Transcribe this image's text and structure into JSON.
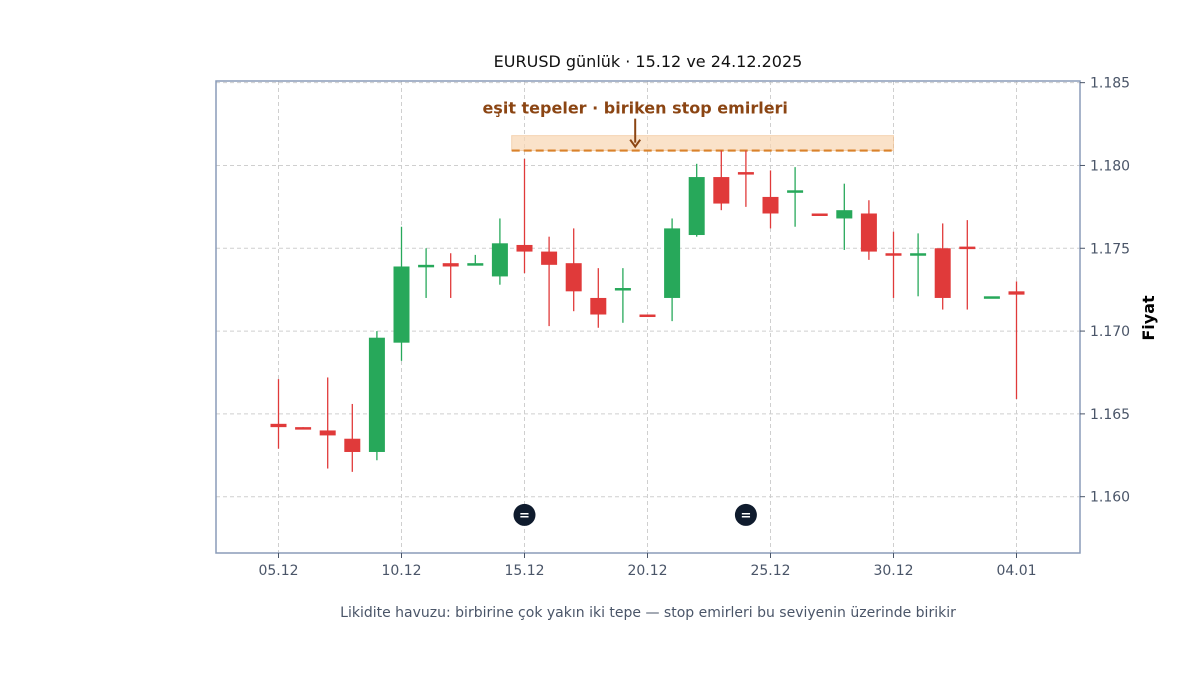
{
  "chart_data": {
    "type": "candlestick",
    "title": "EURUSD günlük · 15.12 ve 24.12.2025",
    "ylabel": "Fiyat",
    "xlabel": "",
    "caption": "Likidite havuzu: birbirine çok yakın iki tepe — stop emirleri bu seviyenin üzerinde birikir",
    "ylim": [
      1.1566,
      1.1851
    ],
    "y_ticks": [
      "1.160",
      "1.165",
      "1.170",
      "1.175",
      "1.180",
      "1.185"
    ],
    "y_tick_values": [
      1.16,
      1.165,
      1.17,
      1.175,
      1.18,
      1.185
    ],
    "x_ticks": [
      "05.12",
      "10.12",
      "15.12",
      "20.12",
      "25.12",
      "30.12",
      "04.01"
    ],
    "x_tick_index": [
      0,
      5,
      10,
      15,
      20,
      25,
      30
    ],
    "grid": true,
    "colors": {
      "up": "#27a85a",
      "down": "#e03a3a",
      "zone_fill": "#f9d7b3",
      "zone_line": "#d9822b",
      "annotation": "#8b4513",
      "marker": "#0f1b2d",
      "frame": "#8a9bb8",
      "grid": "#cfcfcf"
    },
    "candles": [
      {
        "date": "05.12",
        "open": 1.1644,
        "high": 1.1671,
        "low": 1.1629,
        "close": 1.1642
      },
      {
        "date": "06.12",
        "open": 1.1642,
        "high": 1.1642,
        "low": 1.1641,
        "close": 1.1641
      },
      {
        "date": "07.12",
        "open": 1.164,
        "high": 1.1672,
        "low": 1.1617,
        "close": 1.1637
      },
      {
        "date": "08.12",
        "open": 1.1635,
        "high": 1.1656,
        "low": 1.1615,
        "close": 1.1627
      },
      {
        "date": "09.12",
        "open": 1.1627,
        "high": 1.17,
        "low": 1.1622,
        "close": 1.1696
      },
      {
        "date": "10.12",
        "open": 1.1693,
        "high": 1.1763,
        "low": 1.1682,
        "close": 1.1739
      },
      {
        "date": "11.12",
        "open": 1.1739,
        "high": 1.175,
        "low": 1.172,
        "close": 1.174
      },
      {
        "date": "12.12",
        "open": 1.1741,
        "high": 1.1747,
        "low": 1.172,
        "close": 1.1739
      },
      {
        "date": "13.12",
        "open": 1.174,
        "high": 1.1746,
        "low": 1.174,
        "close": 1.1741
      },
      {
        "date": "14.12",
        "open": 1.1733,
        "high": 1.1768,
        "low": 1.1728,
        "close": 1.1753
      },
      {
        "date": "15.12",
        "open": 1.1752,
        "high": 1.1804,
        "low": 1.1735,
        "close": 1.1748
      },
      {
        "date": "16.12",
        "open": 1.1748,
        "high": 1.1757,
        "low": 1.1703,
        "close": 1.174
      },
      {
        "date": "17.12",
        "open": 1.1741,
        "high": 1.1762,
        "low": 1.1712,
        "close": 1.1724
      },
      {
        "date": "18.12",
        "open": 1.172,
        "high": 1.1738,
        "low": 1.1702,
        "close": 1.171
      },
      {
        "date": "19.12",
        "open": 1.1725,
        "high": 1.1738,
        "low": 1.1705,
        "close": 1.1726
      },
      {
        "date": "20.12",
        "open": 1.171,
        "high": 1.171,
        "low": 1.1709,
        "close": 1.1709
      },
      {
        "date": "21.12",
        "open": 1.172,
        "high": 1.1768,
        "low": 1.1706,
        "close": 1.1762
      },
      {
        "date": "22.12",
        "open": 1.1758,
        "high": 1.1801,
        "low": 1.1757,
        "close": 1.1793
      },
      {
        "date": "23.12",
        "open": 1.1793,
        "high": 1.1809,
        "low": 1.1773,
        "close": 1.1777
      },
      {
        "date": "24.12",
        "open": 1.1796,
        "high": 1.1809,
        "low": 1.1775,
        "close": 1.1795
      },
      {
        "date": "25.12",
        "open": 1.1781,
        "high": 1.1797,
        "low": 1.1762,
        "close": 1.1771
      },
      {
        "date": "26.12",
        "open": 1.1784,
        "high": 1.1799,
        "low": 1.1763,
        "close": 1.1785
      },
      {
        "date": "27.12",
        "open": 1.1771,
        "high": 1.1771,
        "low": 1.177,
        "close": 1.177
      },
      {
        "date": "28.12",
        "open": 1.1768,
        "high": 1.1789,
        "low": 1.1749,
        "close": 1.1773
      },
      {
        "date": "29.12",
        "open": 1.1771,
        "high": 1.1779,
        "low": 1.1743,
        "close": 1.1748
      },
      {
        "date": "30.12",
        "open": 1.1747,
        "high": 1.176,
        "low": 1.172,
        "close": 1.1746
      },
      {
        "date": "31.12",
        "open": 1.1746,
        "high": 1.1759,
        "low": 1.1721,
        "close": 1.1747
      },
      {
        "date": "01.01",
        "open": 1.175,
        "high": 1.1765,
        "low": 1.1713,
        "close": 1.172
      },
      {
        "date": "02.01",
        "open": 1.1751,
        "high": 1.1767,
        "low": 1.1713,
        "close": 1.175
      },
      {
        "date": "03.01",
        "open": 1.1721,
        "high": 1.1721,
        "low": 1.1721,
        "close": 1.1721
      },
      {
        "date": "04.01",
        "open": 1.1724,
        "high": 1.173,
        "low": 1.1659,
        "close": 1.1722
      }
    ],
    "liquidity_zone": {
      "label": "eşit tepeler · biriken stop emirleri",
      "from_index": 9.5,
      "to_index": 25,
      "price_low": 1.1809,
      "price_high": 1.1818,
      "arrow_index": 14.5
    },
    "markers": [
      {
        "index": 10,
        "price": 1.1589,
        "symbol": "="
      },
      {
        "index": 19,
        "price": 1.1589,
        "symbol": "="
      }
    ]
  }
}
